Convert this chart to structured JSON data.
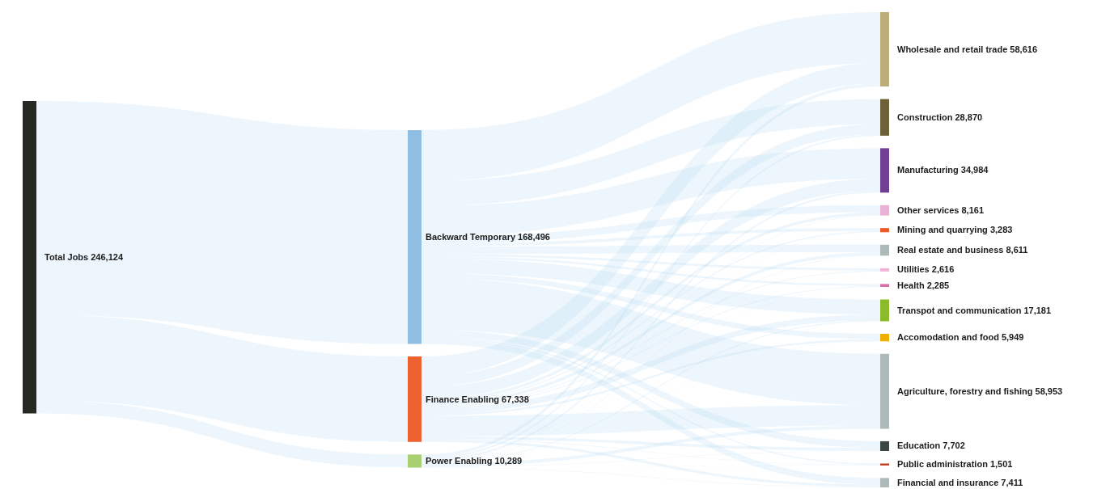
{
  "chart_data": {
    "type": "other",
    "categories": [
      "Total Jobs",
      "Backward Temporary",
      "Finance Enabling",
      "Power Enabling",
      "Wholesale and retail trade",
      "Construction",
      "Manufacturing",
      "Other services",
      "Mining and quarrying",
      "Real estate and business",
      "Utilities",
      "Health",
      "Transpot and communication",
      "Accomodation and food",
      "Agriculture, forestry and fishing",
      "Education",
      "Public administration",
      "Financial and insurance"
    ],
    "series": [
      {
        "values": [
          246124,
          null,
          null,
          null,
          null,
          null,
          null,
          null,
          null,
          null,
          null,
          null,
          null,
          null,
          null,
          null,
          null,
          null
        ],
        "value_labels": [
          "246,124",
          null,
          null,
          null,
          null,
          null,
          null,
          null,
          null,
          null,
          null,
          null,
          null,
          null,
          null,
          null,
          null,
          null
        ]
      },
      {
        "values": [
          null,
          168496,
          67338,
          10289,
          null,
          null,
          null,
          null,
          null,
          null,
          null,
          null,
          null,
          null,
          null,
          null,
          null,
          null
        ],
        "value_labels": [
          null,
          "168,496",
          "67,338",
          "10,289",
          null,
          null,
          null,
          null,
          null,
          null,
          null,
          null,
          null,
          null,
          null,
          null,
          null,
          null
        ]
      },
      {
        "values": [
          null,
          null,
          null,
          null,
          58616,
          28870,
          34984,
          8161,
          3283,
          8611,
          2616,
          2285,
          17181,
          5949,
          58953,
          7702,
          1501,
          7411
        ],
        "value_labels": [
          null,
          null,
          null,
          null,
          "58,616",
          "28,870",
          "34,984",
          "8,161",
          "3,283",
          "8,611",
          "2,616",
          "2,285",
          "17,181",
          "5,949",
          "58,953",
          "7,702",
          "1,501",
          "7,411"
        ]
      }
    ],
    "colors": [
      "#262824",
      "#90bde2",
      "#ee6130",
      "#a9cf72",
      "#bcae7a",
      "#6d6237",
      "#6e3f93",
      "#e9b1d4",
      "#ee5b2a",
      "#aebab7",
      "#efb5d6",
      "#d56fa9",
      "#8bba2a",
      "#eeb000",
      "#aebab7",
      "#3e4643",
      "#c1391c",
      "#aebab7"
    ]
  }
}
